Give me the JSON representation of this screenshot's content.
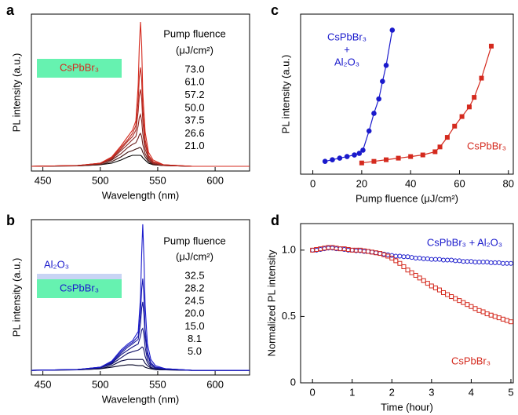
{
  "chart_data": [
    {
      "type": "line",
      "label": "a",
      "xlabel": "Wavelength (nm)",
      "ylabel": "PL intensity (a.u.)",
      "legend_title": [
        "Pump fluence",
        "(μJ/cm²)"
      ],
      "inset": [
        "CsPbBr₃"
      ],
      "xlim": [
        440,
        630
      ],
      "xticks": [
        450,
        500,
        550,
        600
      ],
      "ylim": [
        0,
        1
      ],
      "x": [
        440,
        480,
        500,
        510,
        518,
        524,
        528,
        531,
        533,
        534,
        535,
        536,
        537,
        539,
        542,
        546,
        555,
        580,
        630
      ],
      "series": [
        {
          "name": "73.0",
          "color": "#d42a1e",
          "values": [
            0.03,
            0.035,
            0.05,
            0.09,
            0.16,
            0.22,
            0.26,
            0.32,
            0.55,
            0.8,
            0.95,
            0.8,
            0.5,
            0.25,
            0.12,
            0.07,
            0.04,
            0.03,
            0.03
          ]
        },
        {
          "name": "61.0",
          "color": "#c02a20",
          "values": [
            0.03,
            0.035,
            0.05,
            0.085,
            0.15,
            0.2,
            0.24,
            0.29,
            0.45,
            0.6,
            0.66,
            0.58,
            0.4,
            0.2,
            0.1,
            0.06,
            0.04,
            0.03,
            0.03
          ]
        },
        {
          "name": "57.2",
          "color": "#a82822",
          "values": [
            0.03,
            0.035,
            0.05,
            0.08,
            0.14,
            0.19,
            0.22,
            0.26,
            0.38,
            0.48,
            0.52,
            0.46,
            0.32,
            0.17,
            0.09,
            0.055,
            0.04,
            0.03,
            0.03
          ]
        },
        {
          "name": "50.0",
          "color": "#8a2420",
          "values": [
            0.03,
            0.035,
            0.045,
            0.075,
            0.13,
            0.17,
            0.2,
            0.22,
            0.29,
            0.34,
            0.36,
            0.32,
            0.24,
            0.14,
            0.08,
            0.05,
            0.035,
            0.03,
            0.03
          ]
        },
        {
          "name": "37.5",
          "color": "#6a1c1a",
          "values": [
            0.03,
            0.035,
            0.045,
            0.07,
            0.11,
            0.15,
            0.17,
            0.18,
            0.21,
            0.23,
            0.24,
            0.22,
            0.17,
            0.11,
            0.07,
            0.045,
            0.035,
            0.03,
            0.03
          ]
        },
        {
          "name": "26.6",
          "color": "#3e1210",
          "values": [
            0.03,
            0.033,
            0.04,
            0.06,
            0.09,
            0.12,
            0.13,
            0.14,
            0.145,
            0.15,
            0.15,
            0.14,
            0.12,
            0.09,
            0.06,
            0.04,
            0.035,
            0.03,
            0.03
          ]
        },
        {
          "name": "21.0",
          "color": "#000000",
          "values": [
            0.03,
            0.033,
            0.04,
            0.05,
            0.07,
            0.09,
            0.1,
            0.1,
            0.1,
            0.1,
            0.1,
            0.095,
            0.085,
            0.07,
            0.05,
            0.04,
            0.035,
            0.03,
            0.03
          ]
        }
      ]
    },
    {
      "type": "line",
      "label": "b",
      "xlabel": "Wavelength (nm)",
      "ylabel": "PL intensity (a.u.)",
      "legend_title": [
        "Pump fluence",
        "(μJ/cm²)"
      ],
      "inset": [
        "Al₂O₃",
        "CsPbBr₃"
      ],
      "xlim": [
        440,
        630
      ],
      "xticks": [
        450,
        500,
        550,
        600
      ],
      "ylim": [
        0,
        1
      ],
      "x": [
        440,
        480,
        500,
        510,
        518,
        524,
        528,
        533,
        535,
        536,
        537,
        538,
        539,
        541,
        544,
        548,
        557,
        580,
        630
      ],
      "series": [
        {
          "name": "32.5",
          "color": "#1a1acc",
          "values": [
            0.03,
            0.035,
            0.05,
            0.09,
            0.16,
            0.2,
            0.22,
            0.28,
            0.5,
            0.78,
            0.97,
            0.75,
            0.45,
            0.2,
            0.1,
            0.06,
            0.04,
            0.03,
            0.03
          ]
        },
        {
          "name": "28.2",
          "color": "#1a1ab4",
          "values": [
            0.03,
            0.035,
            0.05,
            0.085,
            0.15,
            0.19,
            0.21,
            0.25,
            0.4,
            0.55,
            0.62,
            0.5,
            0.3,
            0.15,
            0.08,
            0.05,
            0.04,
            0.03,
            0.03
          ]
        },
        {
          "name": "24.5",
          "color": "#18189a",
          "values": [
            0.03,
            0.035,
            0.05,
            0.08,
            0.14,
            0.18,
            0.2,
            0.23,
            0.33,
            0.43,
            0.47,
            0.39,
            0.25,
            0.13,
            0.07,
            0.05,
            0.04,
            0.03,
            0.03
          ]
        },
        {
          "name": "20.0",
          "color": "#141480",
          "values": [
            0.03,
            0.035,
            0.045,
            0.075,
            0.13,
            0.16,
            0.18,
            0.2,
            0.25,
            0.29,
            0.3,
            0.26,
            0.18,
            0.1,
            0.06,
            0.045,
            0.035,
            0.03,
            0.03
          ]
        },
        {
          "name": "15.0",
          "color": "#101066",
          "values": [
            0.03,
            0.035,
            0.045,
            0.07,
            0.11,
            0.14,
            0.15,
            0.16,
            0.17,
            0.18,
            0.18,
            0.16,
            0.12,
            0.08,
            0.05,
            0.04,
            0.035,
            0.03,
            0.03
          ]
        },
        {
          "name": "8.1",
          "color": "#0a0a44",
          "values": [
            0.03,
            0.033,
            0.04,
            0.06,
            0.09,
            0.1,
            0.1,
            0.1,
            0.1,
            0.1,
            0.1,
            0.09,
            0.075,
            0.06,
            0.045,
            0.035,
            0.033,
            0.03,
            0.03
          ]
        },
        {
          "name": "5.0",
          "color": "#000020",
          "values": [
            0.03,
            0.033,
            0.04,
            0.05,
            0.06,
            0.065,
            0.065,
            0.06,
            0.06,
            0.06,
            0.06,
            0.055,
            0.05,
            0.045,
            0.04,
            0.035,
            0.033,
            0.03,
            0.03
          ]
        }
      ]
    },
    {
      "type": "scatter",
      "label": "c",
      "xlabel": "Pump fluence (μJ/cm²)",
      "ylabel": "PL intensity (a.u.)",
      "annotations": [
        "CsPbBr₃",
        "+",
        "Al₂O₃",
        "CsPbBr₃"
      ],
      "xlim": [
        -5,
        82
      ],
      "xticks": [
        0,
        20,
        40,
        60,
        80
      ],
      "ylim": [
        0,
        1
      ],
      "series": [
        {
          "color": "#1a1acc",
          "marker": "circle",
          "filled": true,
          "line": true,
          "x": [
            5,
            8,
            11,
            14,
            17,
            19,
            20.5,
            23,
            25,
            27,
            28.5,
            30,
            32.5
          ],
          "values": [
            0.08,
            0.09,
            0.1,
            0.11,
            0.12,
            0.13,
            0.15,
            0.27,
            0.38,
            0.47,
            0.58,
            0.68,
            0.9
          ]
        },
        {
          "color": "#d42a1e",
          "marker": "square",
          "filled": true,
          "line": true,
          "x": [
            20,
            25,
            30,
            35,
            40,
            45,
            50,
            52,
            55,
            58,
            61,
            64,
            66,
            69,
            73
          ],
          "values": [
            0.07,
            0.08,
            0.09,
            0.1,
            0.11,
            0.12,
            0.14,
            0.17,
            0.23,
            0.3,
            0.36,
            0.42,
            0.48,
            0.6,
            0.8
          ]
        }
      ]
    },
    {
      "type": "scatter",
      "label": "d",
      "xlabel": "Time (hour)",
      "ylabel": "Normalized PL intensity",
      "annotations": [
        "CsPbBr₃ + Al₂O₃",
        "CsPbBr₃"
      ],
      "xlim": [
        -0.3,
        5.06
      ],
      "xticks": [
        0,
        1,
        2,
        3,
        4,
        5
      ],
      "ylim": [
        0,
        1.2
      ],
      "yticks": [
        0,
        0.5,
        {
          "value": 1,
          "label": "1.0"
        }
      ],
      "x": [
        0,
        0.1,
        0.2,
        0.3,
        0.4,
        0.5,
        0.6,
        0.7,
        0.8,
        0.9,
        1.0,
        1.1,
        1.2,
        1.3,
        1.4,
        1.5,
        1.6,
        1.7,
        1.8,
        1.9,
        2.0,
        2.1,
        2.2,
        2.3,
        2.4,
        2.5,
        2.6,
        2.7,
        2.8,
        2.9,
        3.0,
        3.1,
        3.2,
        3.3,
        3.4,
        3.5,
        3.6,
        3.7,
        3.8,
        3.9,
        4.0,
        4.1,
        4.2,
        4.3,
        4.4,
        4.5,
        4.6,
        4.7,
        4.8,
        4.9,
        5.0
      ],
      "series": [
        {
          "color": "#1a1acc",
          "marker": "circle",
          "filled": false,
          "values": [
            1.0,
            1.0,
            1.005,
            1.01,
            1.015,
            1.015,
            1.01,
            1.01,
            1.005,
            1.0,
            1.0,
            0.995,
            0.995,
            0.99,
            0.99,
            0.985,
            0.98,
            0.975,
            0.97,
            0.965,
            0.96,
            0.955,
            0.955,
            0.95,
            0.95,
            0.945,
            0.94,
            0.94,
            0.935,
            0.935,
            0.93,
            0.93,
            0.93,
            0.925,
            0.925,
            0.925,
            0.92,
            0.92,
            0.915,
            0.915,
            0.915,
            0.91,
            0.91,
            0.91,
            0.91,
            0.905,
            0.905,
            0.905,
            0.9,
            0.9,
            0.9
          ]
        },
        {
          "color": "#d42a1e",
          "marker": "square",
          "filled": false,
          "values": [
            1.0,
            1.005,
            1.01,
            1.015,
            1.02,
            1.02,
            1.015,
            1.01,
            1.01,
            1.005,
            1.0,
            1.0,
            1.0,
            0.995,
            0.99,
            0.985,
            0.98,
            0.975,
            0.965,
            0.955,
            0.94,
            0.92,
            0.9,
            0.875,
            0.85,
            0.83,
            0.81,
            0.79,
            0.77,
            0.75,
            0.73,
            0.715,
            0.7,
            0.68,
            0.665,
            0.65,
            0.635,
            0.62,
            0.605,
            0.59,
            0.575,
            0.56,
            0.545,
            0.535,
            0.52,
            0.51,
            0.5,
            0.49,
            0.48,
            0.47,
            0.46
          ]
        }
      ]
    }
  ]
}
